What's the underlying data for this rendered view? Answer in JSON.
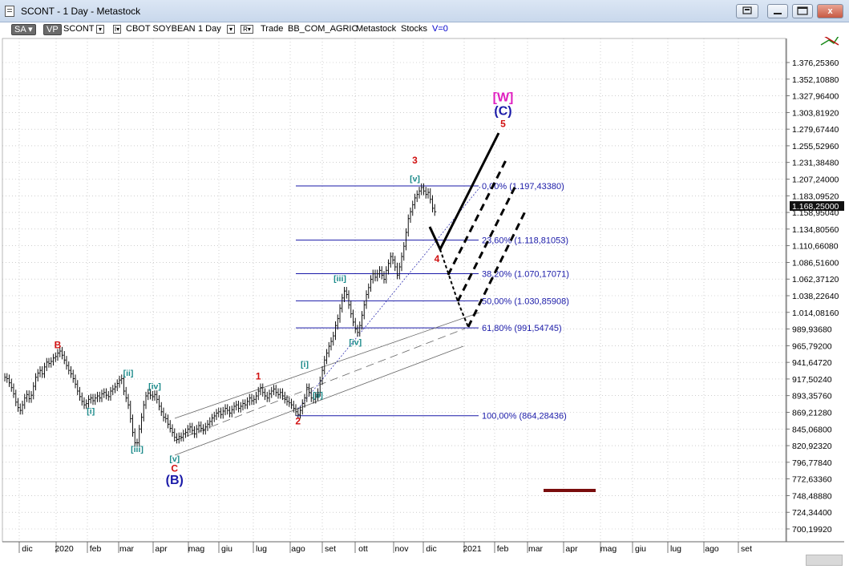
{
  "window": {
    "title": "SCONT - 1 Day - Metastock",
    "buttons": [
      "restore",
      "minimize",
      "maximize",
      "close"
    ],
    "close_glyph": "x"
  },
  "toolbar": {
    "sa_label": "SA",
    "vp_label": "VP",
    "symbol": "SCONT",
    "dropdown_glyph": "▾",
    "i_glyph": "I▾",
    "r_glyph": "R▾",
    "instrument": "CBOT SOYBEAN",
    "period": "1 Day",
    "trade": "Trade",
    "source": "BB_COM_AGRIC",
    "provider": "Metastock",
    "category": "Stocks",
    "volume_label": "V=0",
    "colors": {
      "volume_label": "#0000cc"
    }
  },
  "chart_data": {
    "type": "bar",
    "price_axis": {
      "ticks": [
        "1.376,25360",
        "1.352,10880",
        "1.327,96400",
        "1.303,81920",
        "1.279,67440",
        "1.255,52960",
        "1.231,38480",
        "1.207,24000",
        "1.183,09520",
        "1.158,95040",
        "1.134,80560",
        "1.110,66080",
        "1.086,51600",
        "1.062,37120",
        "1.038,22640",
        "1.014,08160",
        "989,93680",
        "965,79200",
        "941,64720",
        "917,50240",
        "893,35760",
        "869,21280",
        "845,06800",
        "820,92320",
        "796,77840",
        "772,63360",
        "748,48880",
        "724,34400",
        "700,19920"
      ],
      "current_price": "1.168,25000"
    },
    "time_axis": {
      "labels": [
        "dic",
        "2020",
        "feb",
        "mar",
        "apr",
        "mag",
        "giu",
        "lug",
        "ago",
        "set",
        "ott",
        "nov",
        "dic",
        "2021",
        "feb",
        "mar",
        "apr",
        "mag",
        "giu",
        "lug",
        "ago",
        "set"
      ]
    },
    "fibonacci_levels": [
      {
        "label": "0,00% (1.197,43380)",
        "value": 1197.4338
      },
      {
        "label": "23,60% (1.118,81053)",
        "value": 1118.81053
      },
      {
        "label": "38,20% (1.070,17071)",
        "value": 1070.17071
      },
      {
        "label": "50,00% (1.030,85908)",
        "value": 1030.85908
      },
      {
        "label": "61,80% (991,54745)",
        "value": 991.54745
      },
      {
        "label": "100,00% (864,28436)",
        "value": 864.28436
      }
    ],
    "wave_labels": [
      {
        "text": "[W]",
        "color": "#e020c0",
        "price": 1320,
        "day": 226
      },
      {
        "text": "(C)",
        "color": "#1a1aa8",
        "price": 1300,
        "day": 226
      },
      {
        "text": "5",
        "color": "#d01010",
        "price": 1283,
        "day": 226
      },
      {
        "text": "3",
        "color": "#d01010",
        "price": 1230,
        "day": 186
      },
      {
        "text": "[v]",
        "color": "#1a8a8a",
        "price": 1204,
        "day": 186
      },
      {
        "text": "4",
        "color": "#d01010",
        "price": 1087,
        "day": 196
      },
      {
        "text": "[iii]",
        "color": "#1a8a8a",
        "price": 1059,
        "day": 152
      },
      {
        "text": "[iv]",
        "color": "#1a8a8a",
        "price": 967,
        "day": 159
      },
      {
        "text": "[i]",
        "color": "#1a8a8a",
        "price": 935,
        "day": 136
      },
      {
        "text": "[ii]",
        "color": "#1a8a8a",
        "price": 890,
        "day": 142
      },
      {
        "text": "1",
        "color": "#d01010",
        "price": 917,
        "day": 115
      },
      {
        "text": "2",
        "color": "#d01010",
        "price": 852,
        "day": 133
      },
      {
        "text": "B",
        "color": "#d01010",
        "price": 962,
        "day": 24
      },
      {
        "text": "[ii]",
        "color": "#1a8a8a",
        "price": 922,
        "day": 56
      },
      {
        "text": "[i]",
        "color": "#1a8a8a",
        "price": 867,
        "day": 39
      },
      {
        "text": "[iv]",
        "color": "#1a8a8a",
        "price": 903,
        "day": 68
      },
      {
        "text": "[iii]",
        "color": "#1a8a8a",
        "price": 812,
        "day": 60
      },
      {
        "text": "[v]",
        "color": "#1a8a8a",
        "price": 798,
        "day": 77
      },
      {
        "text": "C",
        "color": "#d01010",
        "price": 783,
        "day": 77
      },
      {
        "text": "(B)",
        "color": "#1a1aa8",
        "price": 765,
        "day": 77
      }
    ],
    "price_series": [
      [
        0,
        920
      ],
      [
        1,
        918
      ],
      [
        2,
        912
      ],
      [
        3,
        905
      ],
      [
        4,
        896
      ],
      [
        5,
        884
      ],
      [
        6,
        876
      ],
      [
        7,
        872
      ],
      [
        8,
        880
      ],
      [
        9,
        890
      ],
      [
        10,
        895
      ],
      [
        11,
        889
      ],
      [
        12,
        894
      ],
      [
        13,
        907
      ],
      [
        14,
        920
      ],
      [
        15,
        926
      ],
      [
        16,
        930
      ],
      [
        17,
        925
      ],
      [
        18,
        935
      ],
      [
        19,
        942
      ],
      [
        20,
        940
      ],
      [
        21,
        943
      ],
      [
        22,
        948
      ],
      [
        23,
        950
      ],
      [
        24,
        955
      ],
      [
        25,
        958
      ],
      [
        26,
        952
      ],
      [
        27,
        945
      ],
      [
        28,
        937
      ],
      [
        29,
        930
      ],
      [
        30,
        925
      ],
      [
        31,
        918
      ],
      [
        32,
        910
      ],
      [
        33,
        900
      ],
      [
        34,
        892
      ],
      [
        35,
        885
      ],
      [
        36,
        880
      ],
      [
        37,
        882
      ],
      [
        38,
        888
      ],
      [
        39,
        890
      ],
      [
        40,
        886
      ],
      [
        41,
        890
      ],
      [
        42,
        893
      ],
      [
        43,
        890
      ],
      [
        44,
        896
      ],
      [
        45,
        898
      ],
      [
        46,
        894
      ],
      [
        47,
        892
      ],
      [
        48,
        900
      ],
      [
        49,
        903
      ],
      [
        50,
        906
      ],
      [
        51,
        911
      ],
      [
        52,
        916
      ],
      [
        53,
        918
      ],
      [
        54,
        900
      ],
      [
        55,
        890
      ],
      [
        56,
        880
      ],
      [
        57,
        860
      ],
      [
        58,
        840
      ],
      [
        59,
        825
      ],
      [
        60,
        825
      ],
      [
        61,
        845
      ],
      [
        62,
        862
      ],
      [
        63,
        880
      ],
      [
        64,
        893
      ],
      [
        65,
        897
      ],
      [
        66,
        894
      ],
      [
        67,
        892
      ],
      [
        68,
        895
      ],
      [
        69,
        888
      ],
      [
        70,
        878
      ],
      [
        71,
        870
      ],
      [
        72,
        862
      ],
      [
        73,
        860
      ],
      [
        74,
        852
      ],
      [
        75,
        846
      ],
      [
        76,
        840
      ],
      [
        77,
        833
      ],
      [
        78,
        830
      ],
      [
        79,
        834
      ],
      [
        80,
        833
      ],
      [
        81,
        838
      ],
      [
        82,
        840
      ],
      [
        83,
        845
      ],
      [
        84,
        848
      ],
      [
        85,
        843
      ],
      [
        86,
        838
      ],
      [
        87,
        845
      ],
      [
        88,
        850
      ],
      [
        89,
        846
      ],
      [
        90,
        843
      ],
      [
        91,
        848
      ],
      [
        92,
        852
      ],
      [
        93,
        856
      ],
      [
        94,
        861
      ],
      [
        95,
        864
      ],
      [
        96,
        868
      ],
      [
        97,
        870
      ],
      [
        98,
        866
      ],
      [
        99,
        871
      ],
      [
        100,
        875
      ],
      [
        101,
        872
      ],
      [
        102,
        868
      ],
      [
        103,
        873
      ],
      [
        104,
        878
      ],
      [
        105,
        880
      ],
      [
        106,
        875
      ],
      [
        107,
        878
      ],
      [
        108,
        882
      ],
      [
        109,
        880
      ],
      [
        110,
        885
      ],
      [
        111,
        890
      ],
      [
        112,
        886
      ],
      [
        113,
        888
      ],
      [
        114,
        893
      ],
      [
        115,
        900
      ],
      [
        116,
        905
      ],
      [
        117,
        898
      ],
      [
        118,
        893
      ],
      [
        119,
        890
      ],
      [
        120,
        896
      ],
      [
        121,
        900
      ],
      [
        122,
        903
      ],
      [
        123,
        898
      ],
      [
        124,
        895
      ],
      [
        125,
        898
      ],
      [
        126,
        893
      ],
      [
        127,
        888
      ],
      [
        128,
        885
      ],
      [
        129,
        883
      ],
      [
        130,
        880
      ],
      [
        131,
        875
      ],
      [
        132,
        870
      ],
      [
        133,
        866
      ],
      [
        134,
        872
      ],
      [
        135,
        882
      ],
      [
        136,
        890
      ],
      [
        137,
        905
      ],
      [
        138,
        898
      ],
      [
        139,
        890
      ],
      [
        140,
        888
      ],
      [
        141,
        892
      ],
      [
        142,
        898
      ],
      [
        143,
        915
      ],
      [
        144,
        930
      ],
      [
        145,
        945
      ],
      [
        146,
        955
      ],
      [
        147,
        965
      ],
      [
        148,
        972
      ],
      [
        149,
        980
      ],
      [
        150,
        995
      ],
      [
        151,
        1005
      ],
      [
        152,
        1020
      ],
      [
        153,
        1035
      ],
      [
        154,
        1045
      ],
      [
        155,
        1040
      ],
      [
        156,
        1025
      ],
      [
        157,
        1012
      ],
      [
        158,
        1000
      ],
      [
        159,
        990
      ],
      [
        160,
        985
      ],
      [
        161,
        995
      ],
      [
        162,
        1010
      ],
      [
        163,
        1025
      ],
      [
        164,
        1040
      ],
      [
        165,
        1050
      ],
      [
        166,
        1062
      ],
      [
        167,
        1070
      ],
      [
        168,
        1065
      ],
      [
        169,
        1070
      ],
      [
        170,
        1075
      ],
      [
        171,
        1068
      ],
      [
        172,
        1062
      ],
      [
        173,
        1075
      ],
      [
        174,
        1085
      ],
      [
        175,
        1095
      ],
      [
        176,
        1090
      ],
      [
        177,
        1080
      ],
      [
        178,
        1068
      ],
      [
        179,
        1080
      ],
      [
        180,
        1095
      ],
      [
        181,
        1110
      ],
      [
        182,
        1130
      ],
      [
        183,
        1150
      ],
      [
        184,
        1160
      ],
      [
        185,
        1170
      ],
      [
        186,
        1180
      ],
      [
        187,
        1185
      ],
      [
        188,
        1190
      ],
      [
        189,
        1195
      ],
      [
        190,
        1190
      ],
      [
        191,
        1185
      ],
      [
        192,
        1188
      ],
      [
        193,
        1178
      ],
      [
        194,
        1165
      ],
      [
        195,
        1160
      ]
    ],
    "grid": true,
    "title": ""
  }
}
